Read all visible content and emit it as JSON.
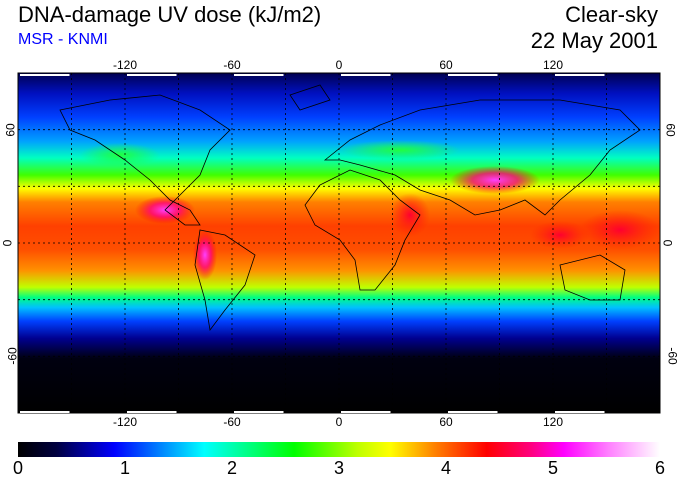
{
  "header": {
    "title": "DNA-damage UV dose (kJ/m2)",
    "source": "MSR - KNMI",
    "condition": "Clear-sky",
    "date": "22 May 2001"
  },
  "map": {
    "lon_ticks": [
      "-120",
      "-60",
      "0",
      "60",
      "120"
    ],
    "lat_ticks": [
      "60",
      "0",
      "-60"
    ],
    "grid_lon_deg": [
      -150,
      -120,
      -90,
      -60,
      -30,
      0,
      30,
      60,
      90,
      120,
      150
    ],
    "grid_lat_deg": [
      60,
      30,
      0,
      -30,
      -60
    ]
  },
  "colorbar": {
    "ticks": [
      "0",
      "1",
      "2",
      "3",
      "4",
      "5",
      "6"
    ],
    "min": 0,
    "max": 6,
    "colors": [
      "#000000",
      "#0000ff",
      "#00ffff",
      "#00ff00",
      "#ffff00",
      "#ff0000",
      "#ff00ff",
      "#ffffff"
    ]
  }
}
